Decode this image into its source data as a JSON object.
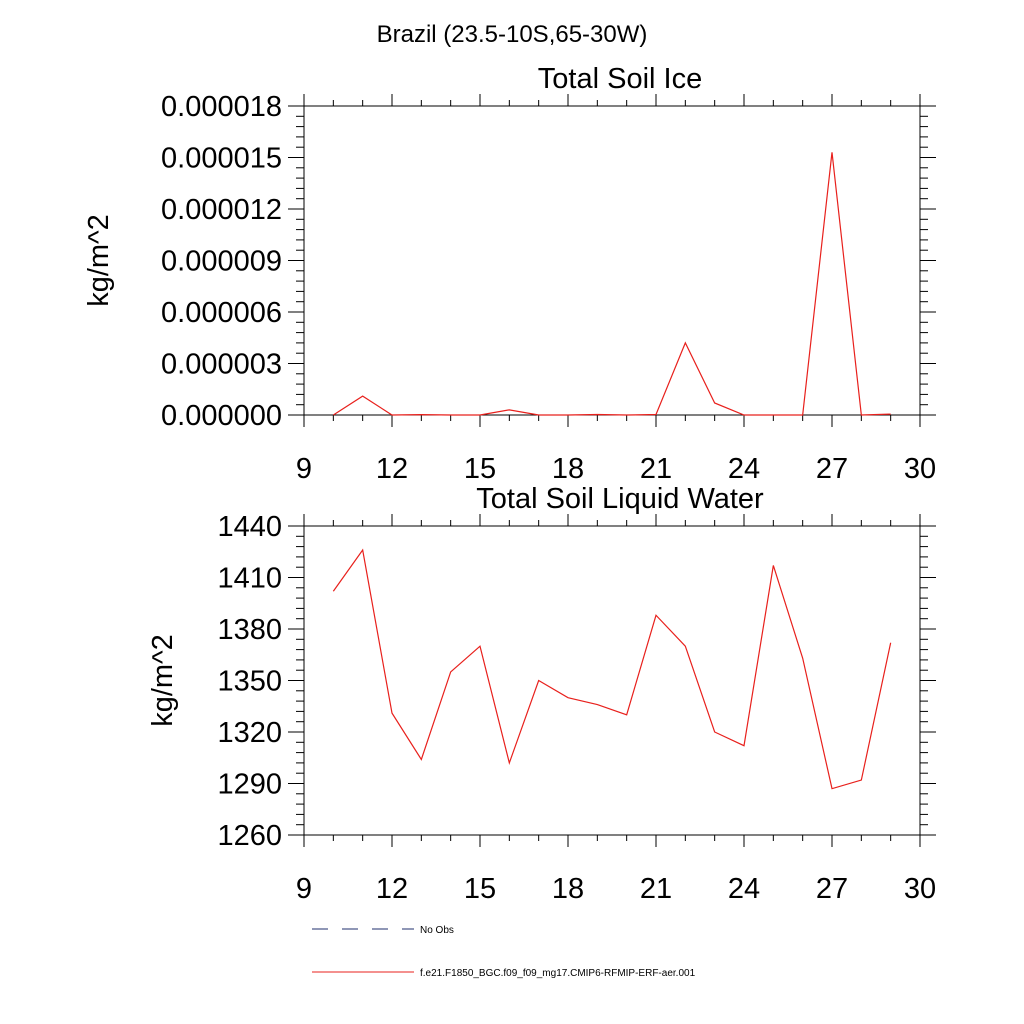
{
  "figure": {
    "main_title": "Brazil (23.5-10S,65-30W)"
  },
  "legend": {
    "entries": [
      {
        "label": "No Obs",
        "style": "dashed",
        "color": "#1f2f6e"
      },
      {
        "label": "f.e21.F1850_BGC.f09_f09_mg17.CMIP6-RFMIP-ERF-aer.001",
        "style": "solid",
        "color": "#e8201c"
      }
    ]
  },
  "chart_data": [
    {
      "type": "line",
      "title": "Total Soil Ice",
      "xlabel": "",
      "ylabel": "kg/m^2",
      "xlim": [
        9,
        30
      ],
      "ylim": [
        0,
        1.8e-05
      ],
      "x_ticks": [
        9,
        12,
        15,
        18,
        21,
        24,
        27,
        30
      ],
      "x_tick_labels": [
        "9",
        "12",
        "15",
        "18",
        "21",
        "24",
        "27",
        "30"
      ],
      "y_ticks": [
        0,
        3e-06,
        6e-06,
        9e-06,
        1.2e-05,
        1.5e-05,
        1.8e-05
      ],
      "y_tick_labels": [
        "0.000000",
        "0.000003",
        "0.000006",
        "0.000009",
        "0.000012",
        "0.000015",
        "0.000018"
      ],
      "grid": false,
      "series": [
        {
          "color": "#e8201c",
          "x": [
            10,
            11,
            12,
            13,
            14,
            15,
            16,
            17,
            18,
            19,
            20,
            21,
            22,
            23,
            24,
            25,
            26,
            27,
            28,
            29
          ],
          "y": [
            0,
            1.1e-06,
            0,
            2e-08,
            0,
            0,
            3e-07,
            0,
            0,
            3e-08,
            0,
            3e-08,
            4.2e-06,
            7e-07,
            0,
            0,
            0,
            1.53e-05,
            0,
            5e-08
          ]
        }
      ]
    },
    {
      "type": "line",
      "title": "Total Soil Liquid Water",
      "xlabel": "",
      "ylabel": "kg/m^2",
      "xlim": [
        9,
        30
      ],
      "ylim": [
        1260,
        1440
      ],
      "x_ticks": [
        9,
        12,
        15,
        18,
        21,
        24,
        27,
        30
      ],
      "x_tick_labels": [
        "9",
        "12",
        "15",
        "18",
        "21",
        "24",
        "27",
        "30"
      ],
      "y_ticks": [
        1260,
        1290,
        1320,
        1350,
        1380,
        1410,
        1440
      ],
      "y_tick_labels": [
        "1260",
        "1290",
        "1320",
        "1350",
        "1380",
        "1410",
        "1440"
      ],
      "grid": false,
      "series": [
        {
          "color": "#e8201c",
          "x": [
            10,
            11,
            12,
            13,
            14,
            15,
            16,
            17,
            18,
            19,
            20,
            21,
            22,
            23,
            24,
            25,
            26,
            27,
            28,
            29
          ],
          "y": [
            1402,
            1426,
            1331,
            1304,
            1355,
            1370,
            1302,
            1350,
            1340,
            1336,
            1330,
            1388,
            1370,
            1320,
            1312,
            1417,
            1363,
            1287,
            1292,
            1372
          ]
        }
      ]
    }
  ]
}
